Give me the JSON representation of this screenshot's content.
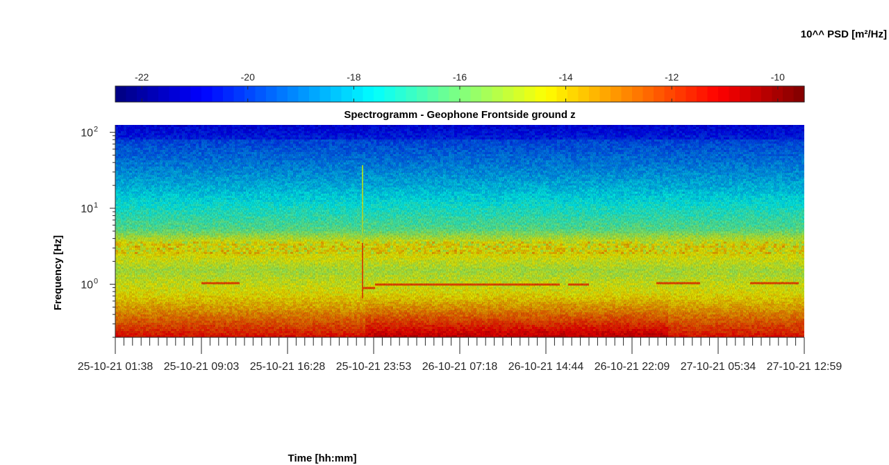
{
  "chart_data": {
    "type": "heatmap",
    "title": "Spectrogramm - Geophone Frontside ground z",
    "xlabel": "Time [hh:mm]",
    "ylabel": "Frequency [Hz]",
    "colorbar_label": "10^^ PSD [m²/Hz]",
    "colormap": "jet",
    "color_range": [
      -22.5,
      -9.5
    ],
    "colorbar_ticks": [
      "-22",
      "-20",
      "-18",
      "-16",
      "-14",
      "-12",
      "-10"
    ],
    "colorbar_tick_values": [
      -22,
      -20,
      -18,
      -16,
      -14,
      -12,
      -10
    ],
    "yscale": "log",
    "ylim": [
      0.2,
      125
    ],
    "y_ticks": [
      {
        "value": 1,
        "base": "10",
        "exp": "0"
      },
      {
        "value": 10,
        "base": "10",
        "exp": "1"
      },
      {
        "value": 100,
        "base": "10",
        "exp": "2"
      }
    ],
    "x_ticks": [
      "25-10-21 01:38",
      "25-10-21 09:03",
      "25-10-21 16:28",
      "25-10-21 23:53",
      "26-10-21 07:18",
      "26-10-21 14:44",
      "26-10-21 22:09",
      "27-10-21 05:34",
      "27-10-21 12:59"
    ],
    "grid": false
  }
}
